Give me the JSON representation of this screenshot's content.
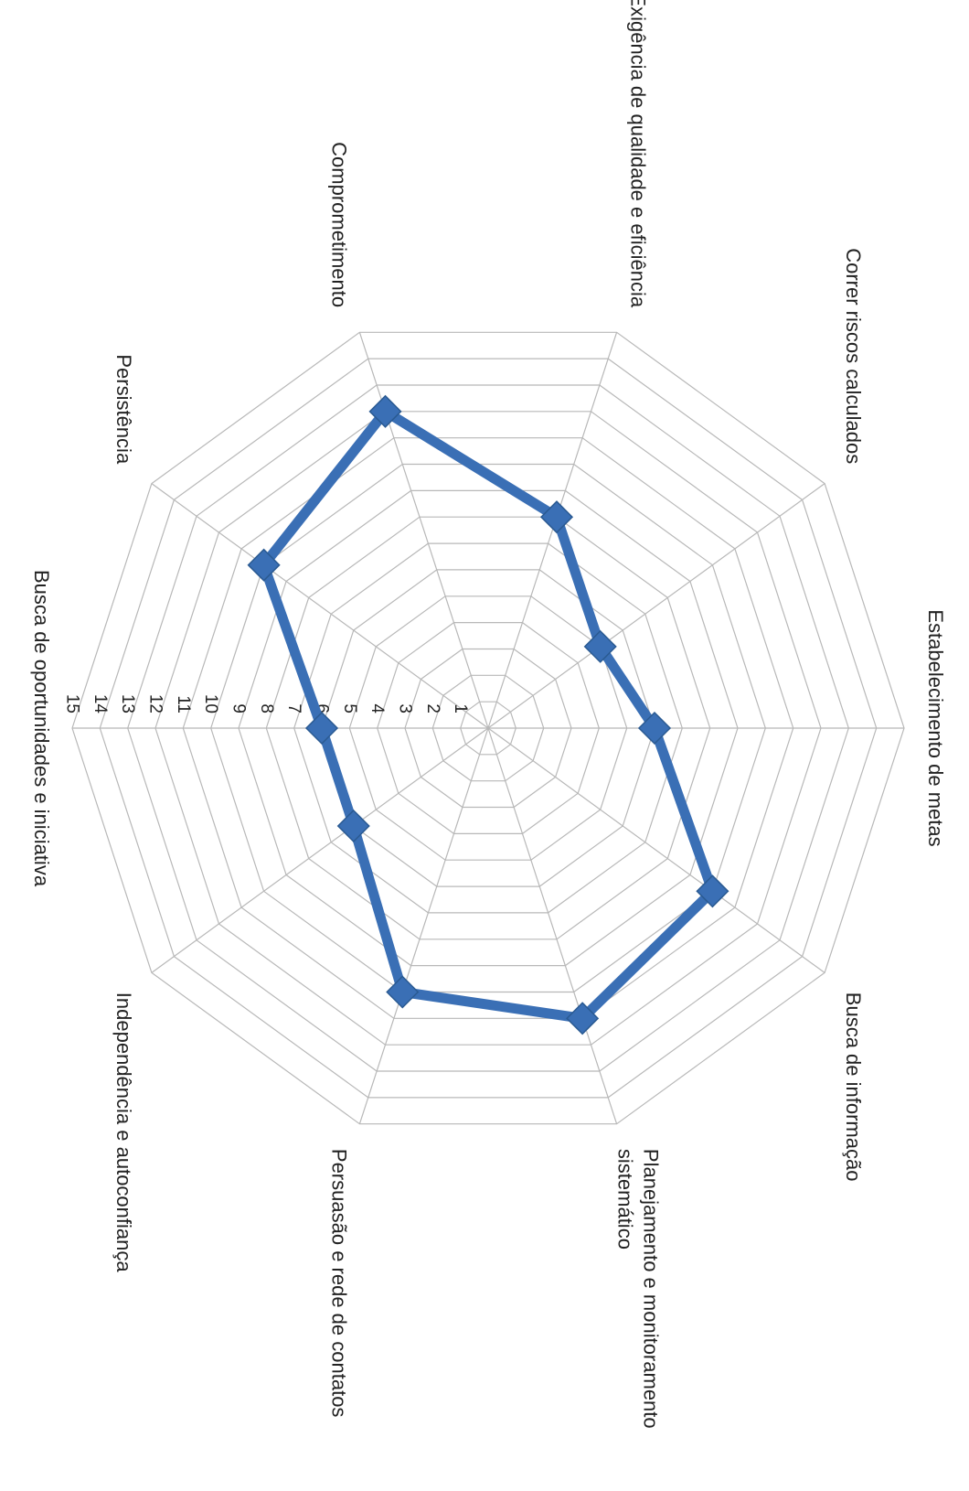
{
  "chart_data": {
    "type": "radar",
    "orientation": "rotated-90-clockwise",
    "categories": [
      "Busca de oportunidades e iniciativa",
      "Persistência",
      "Comprometimento",
      "Exigência de qualidade e eficiência",
      "Correr riscos calculados",
      "Estabelecimento de metas",
      "Busca de informação",
      "Planejamento e monitoramento sistemático",
      "Persuasão e rede de contatos",
      "Independência e autoconfiança"
    ],
    "category_label_lines": [
      [
        "Busca de oportunidades e iniciativa"
      ],
      [
        "Persistência"
      ],
      [
        "Comprometimento"
      ],
      [
        "Exigência de qualidade e eficiência"
      ],
      [
        "Correr riscos calculados"
      ],
      [
        "Estabelecimento de metas"
      ],
      [
        "Busca de informação"
      ],
      [
        "Planejamento e monitoramento",
        "sistemático"
      ],
      [
        "Persuasão e rede de contatos"
      ],
      [
        "Independência e autoconfiança"
      ]
    ],
    "series": [
      {
        "values": [
          6,
          10,
          12,
          8,
          5,
          6,
          10,
          11,
          10,
          6
        ],
        "color": "#3a6fb5"
      }
    ],
    "rlim": [
      0,
      15
    ],
    "ticks": [
      "1",
      "2",
      "3",
      "4",
      "5",
      "6",
      "7",
      "8",
      "9",
      "10",
      "11",
      "12",
      "13",
      "14",
      "15"
    ],
    "grid": true,
    "legend": "none",
    "marker": "diamond",
    "gridline_color": "#b8b8b8"
  }
}
